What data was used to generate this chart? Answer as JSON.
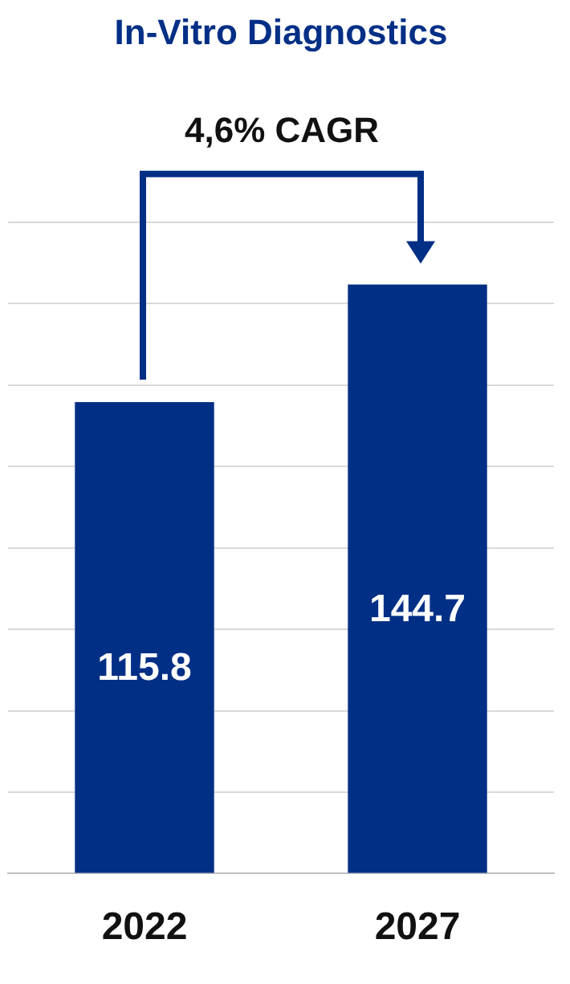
{
  "chart_data": {
    "type": "bar",
    "title": "In-Vitro Diagnostics",
    "categories": [
      "2022",
      "2027"
    ],
    "values": [
      115.8,
      144.7
    ],
    "color": "#022f86",
    "data_labels": true,
    "ylim": [
      0,
      160
    ],
    "yticks": [
      {
        "value": 0,
        "label": null
      },
      {
        "value": 20,
        "label": null
      },
      {
        "value": 40,
        "label": null
      },
      {
        "value": 60,
        "label": null
      },
      {
        "value": 80,
        "label": null
      },
      {
        "value": 100,
        "label": null
      },
      {
        "value": 120,
        "label": null
      },
      {
        "value": 140,
        "label": null
      },
      {
        "value": 160,
        "label": null
      }
    ],
    "tick_labels": "x",
    "grid": "y",
    "legend": false,
    "annotations": [
      "4,6% CAGR"
    ]
  }
}
